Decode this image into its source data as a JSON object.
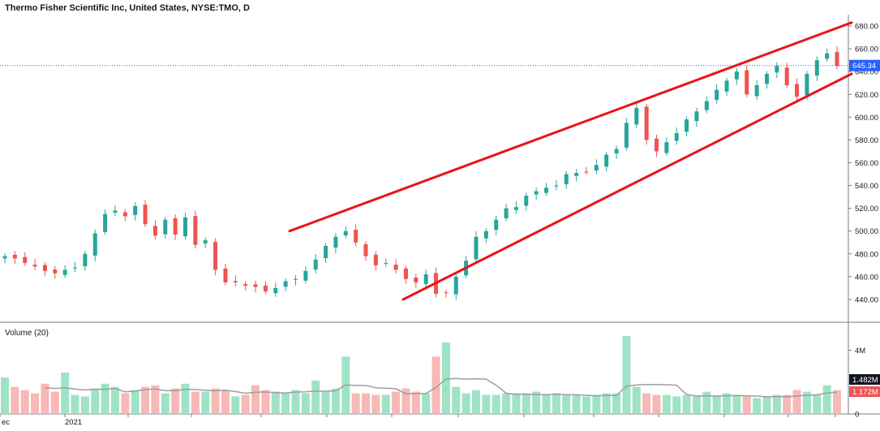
{
  "header": {
    "title": "Thermo Fisher Scientific Inc, United States, NYSE:TMO, D"
  },
  "volume_panel": {
    "label": "Volume (20)"
  },
  "colors": {
    "up": "#26a69a",
    "down": "#ef5350",
    "vol_up": "#9fe3c7",
    "vol_down": "#f7b8b6",
    "trend": "#e8141a",
    "ma": "#9e9e9e",
    "grid": "#e0e3eb",
    "last_price": "#2962ff",
    "vol_last": "#131722",
    "vol_ma": "#ef5350"
  },
  "chart_data": [
    {
      "type": "candlestick",
      "title": "Thermo Fisher Scientific Inc, United States, NYSE:TMO, D",
      "x_tick_labels": [
        "ec",
        "2021"
      ],
      "ylim": [
        420,
        690
      ],
      "y_ticks": [
        440,
        460,
        480,
        500,
        520,
        540,
        560,
        580,
        600,
        620,
        640,
        660,
        680
      ],
      "y_tick_labels": [
        "440.00",
        "460.00",
        "480.00",
        "500.00",
        "520.00",
        "540.00",
        "560.00",
        "580.00",
        "600.00",
        "620.00",
        "640.00",
        "660.00",
        "680.00"
      ],
      "last_price": 645.34,
      "last_price_label": "645.34",
      "closes_approx": [
        478,
        476,
        472,
        469,
        465,
        463,
        466,
        468,
        480,
        498,
        515,
        518,
        513,
        522,
        506,
        496,
        510,
        497,
        512,
        488,
        492,
        466,
        455,
        455,
        452,
        451,
        447,
        450,
        456,
        458,
        465,
        475,
        487,
        495,
        500,
        490,
        478,
        470,
        472,
        466,
        458,
        455,
        462,
        445,
        446,
        460,
        474,
        495,
        500,
        510,
        520,
        521,
        531,
        535,
        538,
        540,
        550,
        551,
        552,
        558,
        567,
        572,
        595,
        608,
        580,
        570,
        578,
        586,
        598,
        605,
        614,
        624,
        632,
        640,
        620,
        628,
        638,
        645,
        628,
        618,
        638,
        650,
        656,
        645
      ],
      "trendlines": [
        {
          "from": [
            "2021-03-08",
            500
          ],
          "to": [
            "2021-11-12",
            683
          ]
        },
        {
          "from": [
            "2021-05-12",
            440
          ],
          "to": [
            "2021-11-12",
            638
          ]
        }
      ]
    },
    {
      "type": "bar",
      "title": "Volume (20)",
      "y_ticks": [
        0,
        4
      ],
      "y_tick_labels": [
        "0",
        "4M"
      ],
      "last_volume_label": "1.482M",
      "volume_ma_label": "1.172M",
      "values_millions_approx": [
        2.3,
        1.7,
        1.5,
        1.3,
        1.9,
        1.4,
        2.6,
        1.2,
        1.1,
        1.6,
        1.9,
        1.7,
        1.3,
        1.5,
        1.7,
        1.8,
        1.3,
        1.6,
        1.9,
        1.4,
        1.4,
        1.6,
        1.5,
        1.1,
        1.2,
        1.8,
        1.5,
        1.4,
        1.3,
        1.5,
        1.3,
        2.1,
        1.4,
        1.6,
        3.6,
        1.3,
        1.3,
        1.2,
        1.2,
        1.4,
        1.6,
        1.4,
        1.3,
        3.6,
        4.5,
        1.7,
        1.3,
        1.5,
        1.2,
        1.2,
        1.3,
        1.3,
        1.3,
        1.4,
        1.2,
        1.3,
        1.2,
        1.2,
        1.1,
        1.2,
        1.3,
        1.3,
        4.9,
        1.7,
        1.3,
        1.2,
        1.2,
        1.1,
        1.2,
        1.1,
        1.4,
        1.1,
        1.3,
        1.2,
        1.1,
        1.0,
        1.1,
        1.2,
        1.2,
        1.5,
        1.4,
        1.2,
        1.8,
        1.5
      ]
    }
  ]
}
